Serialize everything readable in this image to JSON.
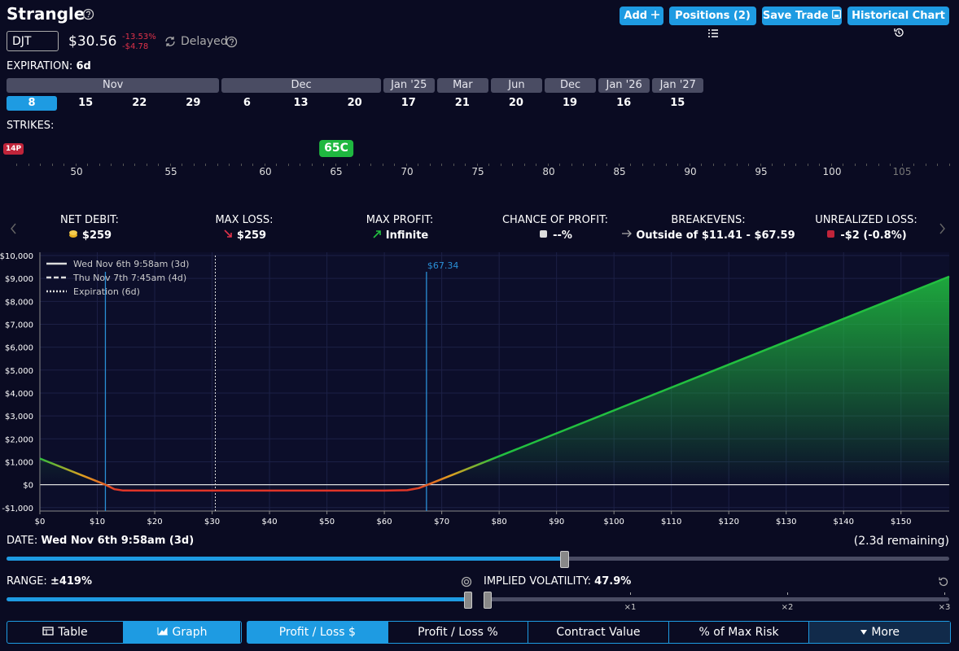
{
  "header": {
    "title": "Strangle",
    "buttons": [
      "Add",
      "Positions (2)",
      "Save Trade",
      "Historical Chart"
    ]
  },
  "ticker": {
    "symbol": "DJT",
    "price": "$30.56",
    "change_pct": "-13.53%",
    "change_abs": "-$4.78",
    "status": "Delayed"
  },
  "expiration": {
    "label": "EXPIRATION:",
    "value": "6d",
    "months": [
      {
        "name": "Nov",
        "days": [
          8,
          15,
          22,
          29
        ]
      },
      {
        "name": "Dec",
        "days": [
          6,
          13,
          20
        ]
      },
      {
        "name": "Jan '25",
        "days": [
          17
        ]
      },
      {
        "name": "Mar",
        "days": [
          21
        ]
      },
      {
        "name": "Jun",
        "days": [
          20
        ]
      },
      {
        "name": "Dec",
        "days": [
          19
        ]
      },
      {
        "name": "Jan '26",
        "days": [
          16
        ]
      },
      {
        "name": "Jan '27",
        "days": [
          15
        ]
      }
    ]
  },
  "strikes": {
    "label": "STRIKES:",
    "put_marker": "14P",
    "call_marker": "65C",
    "ticks": [
      50,
      55,
      60,
      65,
      70,
      75,
      80,
      85,
      90,
      95,
      100,
      105
    ]
  },
  "stats": [
    {
      "label": "NET DEBIT:",
      "value": "$259"
    },
    {
      "label": "MAX LOSS:",
      "value": "$259"
    },
    {
      "label": "MAX PROFIT:",
      "value": "Infinite"
    },
    {
      "label": "CHANCE OF PROFIT:",
      "value": "--%"
    },
    {
      "label": "BREAKEVENS:",
      "value": "Outside of $11.41 - $67.59"
    },
    {
      "label": "UNREALIZED LOSS:",
      "value": "-$2 (-0.8%)"
    }
  ],
  "chart_data": {
    "type": "line",
    "xlim": [
      0,
      158.4
    ],
    "ylim": [
      -1150,
      10000
    ],
    "xticks": [
      {
        "value": 0,
        "label": "$0"
      },
      {
        "value": 10,
        "label": "$10"
      },
      {
        "value": 20,
        "label": "$20"
      },
      {
        "value": 30,
        "label": "$30"
      },
      {
        "value": 40,
        "label": "$40"
      },
      {
        "value": 50,
        "label": "$50"
      },
      {
        "value": 60,
        "label": "$60"
      },
      {
        "value": 70,
        "label": "$70"
      },
      {
        "value": 80,
        "label": "$80"
      },
      {
        "value": 90,
        "label": "$90"
      },
      {
        "value": 100,
        "label": "$100"
      },
      {
        "value": 110,
        "label": "$110"
      },
      {
        "value": 120,
        "label": "$120"
      },
      {
        "value": 130,
        "label": "$130"
      },
      {
        "value": 140,
        "label": "$140"
      },
      {
        "value": 150,
        "label": "$150"
      }
    ],
    "yticks": [
      {
        "value": -1000,
        "label": "-$1,000"
      },
      {
        "value": 0,
        "label": "$0"
      },
      {
        "value": 1000,
        "label": "$1,000"
      },
      {
        "value": 2000,
        "label": "$2,000"
      },
      {
        "value": 3000,
        "label": "$3,000"
      },
      {
        "value": 4000,
        "label": "$4,000"
      },
      {
        "value": 5000,
        "label": "$5,000"
      },
      {
        "value": 6000,
        "label": "$6,000"
      },
      {
        "value": 7000,
        "label": "$7,000"
      },
      {
        "value": 8000,
        "label": "$8,000"
      },
      {
        "value": 9000,
        "label": "$9,000"
      },
      {
        "value": 10000,
        "label": "$10,000"
      }
    ],
    "grid": true,
    "series": [
      {
        "name": "Wed Nov 6th 9:58am (3d)",
        "style": "solid",
        "x": [
          0,
          11.41,
          13,
          14.5,
          20,
          60,
          64,
          66,
          67.59,
          158.4
        ],
        "values": [
          1141,
          0,
          -200,
          -255,
          -259,
          -259,
          -240,
          -150,
          0,
          9081
        ]
      },
      {
        "name": "Thu Nov 7th 7:45am (4d)",
        "style": "dashed"
      },
      {
        "name": "Expiration (6d)",
        "style": "dotted"
      }
    ],
    "breakeven_lines": [
      {
        "x": 11.41
      },
      {
        "x": 67.34,
        "label": "$67.34"
      }
    ],
    "price_line": 30.56
  },
  "date": {
    "label": "DATE:",
    "value": "Wed Nov 6th 9:58am (3d)",
    "remaining": "(2.3d remaining)"
  },
  "range": {
    "label": "RANGE:",
    "value": "±419%"
  },
  "iv": {
    "label": "IMPLIED VOLATILITY:",
    "value": "47.9%",
    "multipliers": [
      "×1",
      "×2",
      "×3"
    ]
  },
  "tabs": {
    "view": [
      "Table",
      "Graph"
    ],
    "metric": [
      "Profit / Loss $",
      "Profit / Loss %",
      "Contract Value",
      "% of Max Risk",
      "More"
    ]
  }
}
